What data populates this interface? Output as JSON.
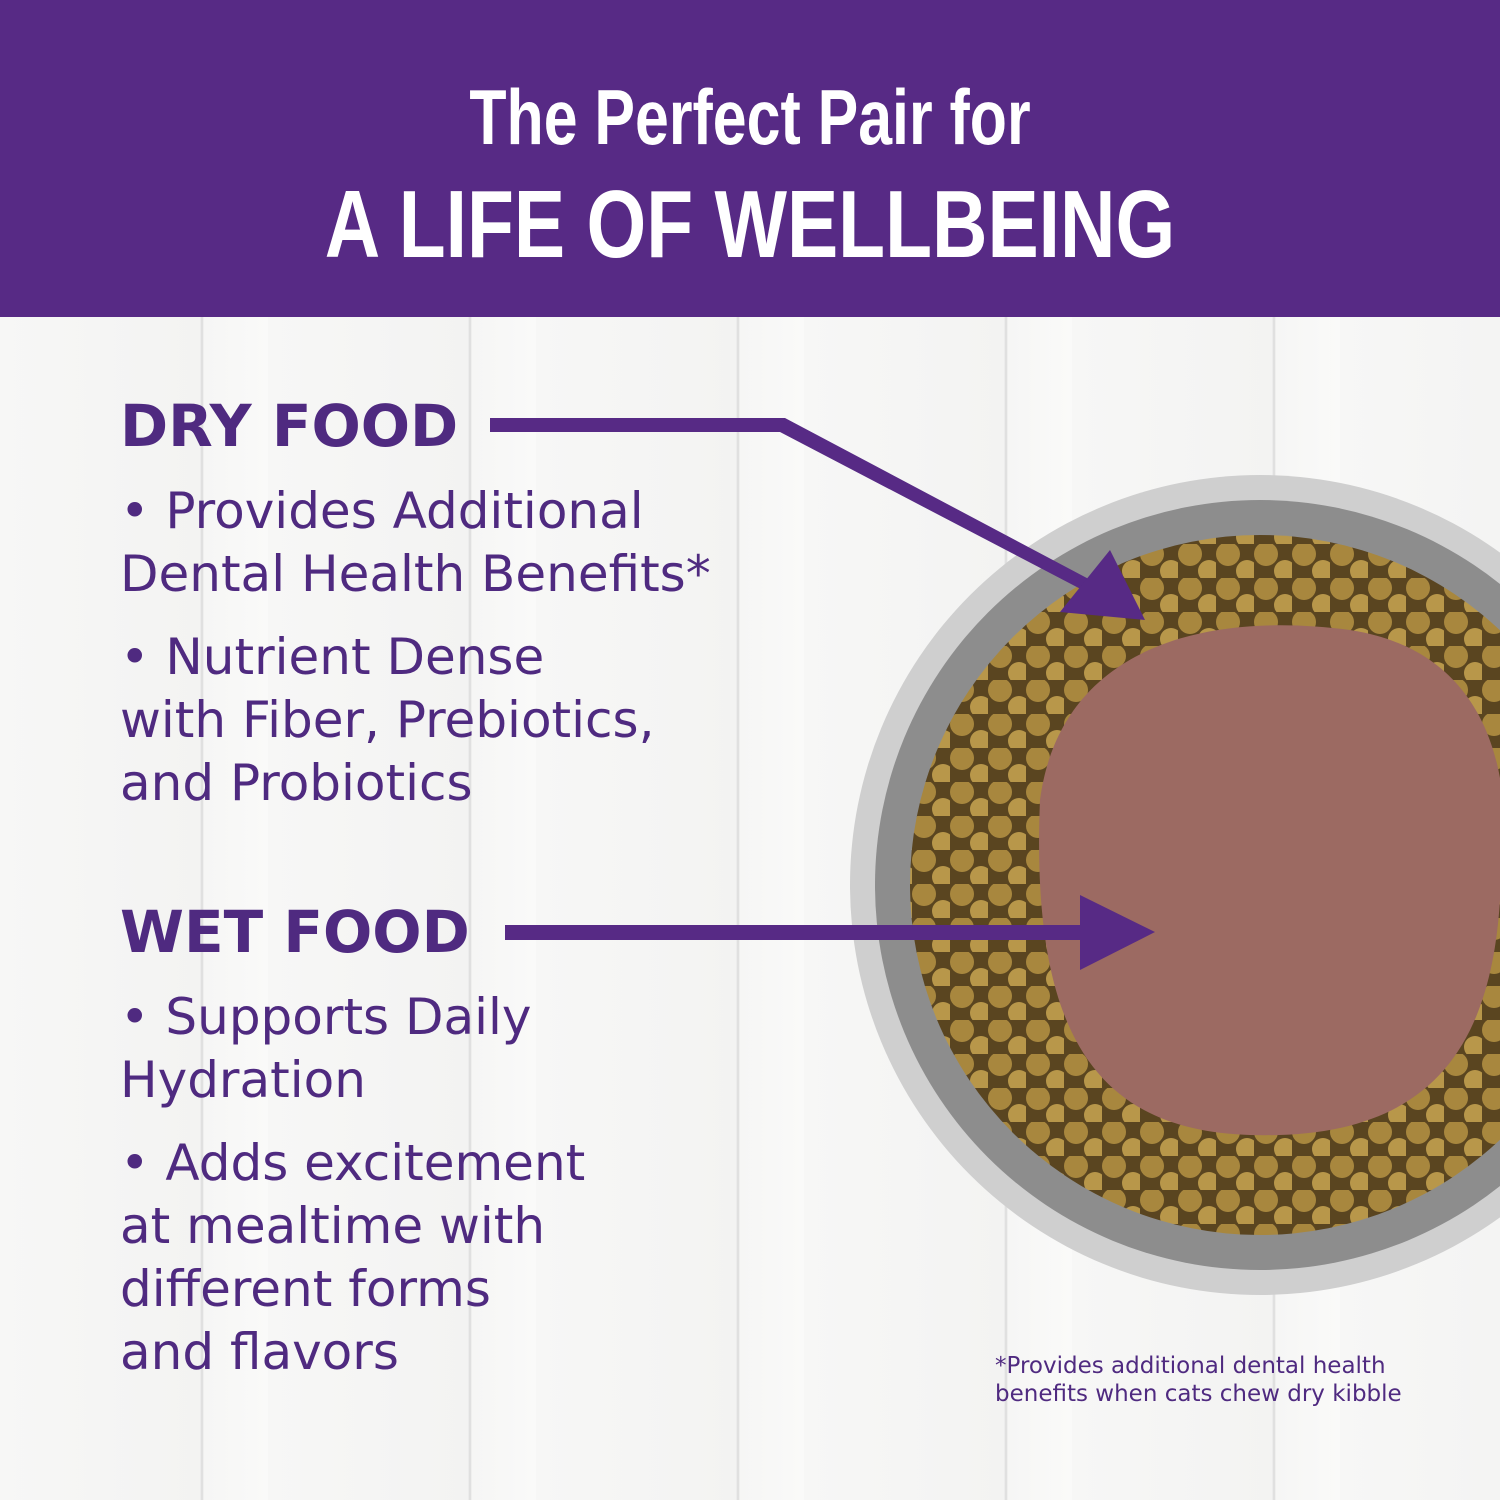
{
  "header": {
    "line1": "The Perfect Pair for",
    "line2": "A LIFE OF WELLBEING"
  },
  "dry": {
    "heading": "DRY FOOD",
    "bullets": [
      "• Provides Additional\nDental Health Benefits*",
      "• Nutrient Dense\nwith Fiber, Prebiotics,\nand Probiotics"
    ]
  },
  "wet": {
    "heading": "WET FOOD",
    "bullets": [
      "• Supports Daily\nHydration",
      "• Adds excitement\nat mealtime with\ndifferent forms\nand flavors"
    ]
  },
  "footnote": "*Provides additional dental health\nbenefits when cats chew dry kibble",
  "colors": {
    "brand": "#572a85",
    "text": "#4f2a80"
  }
}
